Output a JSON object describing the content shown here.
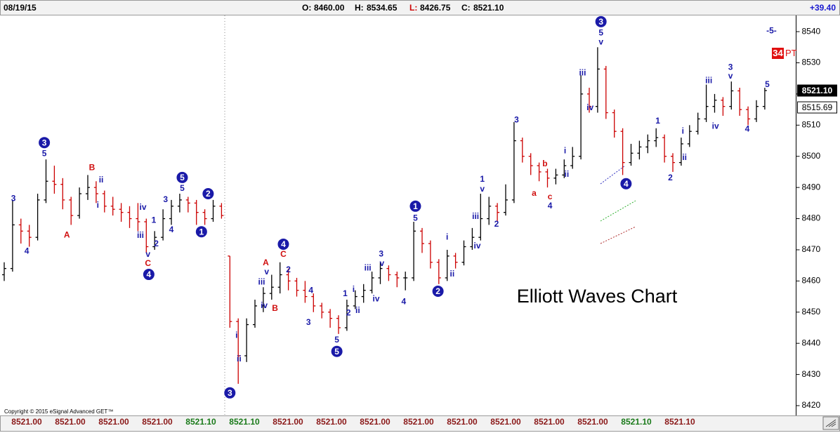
{
  "header": {
    "date": "08/19/15",
    "ohlc": [
      {
        "key": "O:",
        "text": "8460.00"
      },
      {
        "key": "H:",
        "text": "8534.65"
      },
      {
        "key": "L:",
        "text": "8426.75"
      },
      {
        "key": "C:",
        "text": "8521.10"
      }
    ],
    "change": "+39.40"
  },
  "chart_data": {
    "type": "ohlc",
    "title": "Elliott Waves Chart",
    "up_color": "#000000",
    "down_color": "#cc0000",
    "ylim": [
      8417.3,
      8545.2
    ],
    "yticks": [
      8420,
      8430,
      8440,
      8450,
      8460,
      8470,
      8480,
      8490,
      8500,
      8510,
      8520,
      8530,
      8540
    ],
    "ohlc": [
      [
        8462,
        8466,
        8460,
        8464
      ],
      [
        8464,
        8486,
        8463,
        8478
      ],
      [
        8478,
        8480,
        8472,
        8476
      ],
      [
        8476,
        8478,
        8471,
        8474
      ],
      [
        8474,
        8488,
        8473,
        8486
      ],
      [
        8486,
        8499,
        8485,
        8492
      ],
      [
        8492,
        8497,
        8488,
        8491
      ],
      [
        8491,
        8493,
        8483,
        8486
      ],
      [
        8486,
        8487,
        8478,
        8481
      ],
      [
        8481,
        8490,
        8480,
        8488
      ],
      [
        8488,
        8494,
        8486,
        8490
      ],
      [
        8490,
        8492,
        8485,
        8488
      ],
      [
        8488,
        8489,
        8482,
        8484
      ],
      [
        8484,
        8487,
        8481,
        8483
      ],
      [
        8483,
        8485,
        8479,
        8482
      ],
      [
        8482,
        8484,
        8477,
        8480
      ],
      [
        8480,
        8485,
        8476,
        8479
      ],
      [
        8479,
        8480,
        8469,
        8471
      ],
      [
        8471,
        8476,
        8470,
        8474
      ],
      [
        8474,
        8483,
        8473,
        8480
      ],
      [
        8480,
        8486,
        8478,
        8484
      ],
      [
        8484,
        8488,
        8482,
        8486
      ],
      [
        8486,
        8487,
        8482,
        8485
      ],
      [
        8485,
        8486,
        8478,
        8482
      ],
      [
        8482,
        8483,
        8478,
        8480
      ],
      [
        8480,
        8486,
        8479,
        8484
      ],
      [
        8484,
        8485,
        8480,
        8481
      ],
      [
        8468,
        8468,
        8445,
        8447
      ],
      [
        8447,
        8448,
        8427,
        8436
      ],
      [
        8436,
        8448,
        8434,
        8446
      ],
      [
        8446,
        8454,
        8445,
        8452
      ],
      [
        8452,
        8458,
        8450,
        8456
      ],
      [
        8456,
        8462,
        8454,
        8458
      ],
      [
        8458,
        8466,
        8456,
        8462
      ],
      [
        8462,
        8464,
        8457,
        8460
      ],
      [
        8460,
        8461,
        8455,
        8457
      ],
      [
        8457,
        8460,
        8453,
        8455
      ],
      [
        8455,
        8456,
        8450,
        8452
      ],
      [
        8452,
        8453,
        8448,
        8450
      ],
      [
        8450,
        8451,
        8445,
        8448
      ],
      [
        8448,
        8449,
        8443,
        8445
      ],
      [
        8445,
        8454,
        8444,
        8452
      ],
      [
        8452,
        8457,
        8451,
        8455
      ],
      [
        8455,
        8459,
        8453,
        8457
      ],
      [
        8457,
        8463,
        8456,
        8461
      ],
      [
        8461,
        8466,
        8459,
        8464
      ],
      [
        8464,
        8465,
        8460,
        8462
      ],
      [
        8462,
        8463,
        8458,
        8461
      ],
      [
        8461,
        8463,
        8457,
        8461
      ],
      [
        8461,
        8479,
        8460,
        8476
      ],
      [
        8476,
        8477,
        8469,
        8472
      ],
      [
        8472,
        8473,
        8464,
        8466
      ],
      [
        8466,
        8467,
        8459,
        8461
      ],
      [
        8461,
        8470,
        8460,
        8468
      ],
      [
        8468,
        8469,
        8464,
        8466
      ],
      [
        8466,
        8473,
        8465,
        8471
      ],
      [
        8471,
        8477,
        8470,
        8474
      ],
      [
        8474,
        8488,
        8473,
        8480
      ],
      [
        8480,
        8487,
        8478,
        8484
      ],
      [
        8484,
        8485,
        8479,
        8482
      ],
      [
        8482,
        8491,
        8481,
        8486
      ],
      [
        8486,
        8511,
        8485,
        8505
      ],
      [
        8505,
        8506,
        8498,
        8500
      ],
      [
        8500,
        8501,
        8494,
        8497
      ],
      [
        8497,
        8498,
        8492,
        8495
      ],
      [
        8495,
        8496,
        8490,
        8493
      ],
      [
        8493,
        8496,
        8491,
        8494
      ],
      [
        8494,
        8499,
        8493,
        8497
      ],
      [
        8497,
        8503,
        8496,
        8500
      ],
      [
        8500,
        8526,
        8499,
        8520
      ],
      [
        8520,
        8522,
        8514,
        8516
      ],
      [
        8516,
        8535,
        8514,
        8528
      ],
      [
        8528,
        8529,
        8512,
        8514
      ],
      [
        8514,
        8515,
        8506,
        8508
      ],
      [
        8508,
        8509,
        8494,
        8498
      ],
      [
        8498,
        8504,
        8497,
        8501
      ],
      [
        8501,
        8505,
        8499,
        8503
      ],
      [
        8503,
        8507,
        8501,
        8505
      ],
      [
        8505,
        8509,
        8503,
        8506
      ],
      [
        8506,
        8507,
        8498,
        8500
      ],
      [
        8500,
        8501,
        8495,
        8498
      ],
      [
        8498,
        8506,
        8497,
        8504
      ],
      [
        8504,
        8510,
        8503,
        8508
      ],
      [
        8508,
        8514,
        8507,
        8512
      ],
      [
        8512,
        8523,
        8511,
        8516
      ],
      [
        8516,
        8520,
        8514,
        8518
      ],
      [
        8518,
        8519,
        8513,
        8516
      ],
      [
        8516,
        8524,
        8515,
        8521
      ],
      [
        8521,
        8522,
        8513,
        8515
      ],
      [
        8515,
        8516,
        8510,
        8512
      ],
      [
        8512,
        8518,
        8511,
        8516
      ],
      [
        8516,
        8522,
        8515,
        8521.1
      ]
    ],
    "price_tags": [
      {
        "value": 8521.1,
        "label": "8521.10",
        "style": "dark"
      },
      {
        "value": 8515.69,
        "label": "8515.69",
        "style": "light"
      }
    ],
    "annotations": [
      {
        "text": "3",
        "bar": 1.1,
        "price": 8486.4,
        "color": "blue"
      },
      {
        "text": "4",
        "bar": 2.7,
        "price": 8469.5,
        "color": "blue"
      },
      {
        "text": "3",
        "bar": 4.8,
        "price": 8504.4,
        "color": "blue",
        "circled": true
      },
      {
        "text": "5",
        "bar": 4.8,
        "price": 8500.8,
        "color": "blue"
      },
      {
        "text": "A",
        "bar": 7.5,
        "price": 8474.7,
        "color": "red"
      },
      {
        "text": "B",
        "bar": 10.5,
        "price": 8496.3,
        "color": "red"
      },
      {
        "text": "ii",
        "bar": 11.6,
        "price": 8492.3,
        "color": "blue"
      },
      {
        "text": "i",
        "bar": 11.2,
        "price": 8484.2,
        "color": "blue"
      },
      {
        "text": "iii",
        "bar": 16.3,
        "price": 8474.5,
        "color": "blue"
      },
      {
        "text": "iv",
        "bar": 16.6,
        "price": 8483.5,
        "color": "blue"
      },
      {
        "text": "1",
        "bar": 17.9,
        "price": 8479.4,
        "color": "blue"
      },
      {
        "text": "2",
        "bar": 18.2,
        "price": 8471.8,
        "color": "blue"
      },
      {
        "text": "v",
        "bar": 17.2,
        "price": 8468.4,
        "color": "blue"
      },
      {
        "text": "C",
        "bar": 17.2,
        "price": 8465.5,
        "color": "red"
      },
      {
        "text": "4",
        "bar": 17.3,
        "price": 8462.1,
        "color": "blue",
        "circled": true
      },
      {
        "text": "3",
        "bar": 19.3,
        "price": 8486.0,
        "color": "blue"
      },
      {
        "text": "4",
        "bar": 20.0,
        "price": 8476.3,
        "color": "blue"
      },
      {
        "text": "5",
        "bar": 21.3,
        "price": 8493.2,
        "color": "blue",
        "circled": true
      },
      {
        "text": "5",
        "bar": 21.3,
        "price": 8489.6,
        "color": "blue"
      },
      {
        "text": "2",
        "bar": 24.4,
        "price": 8488.0,
        "color": "blue",
        "circled": true
      },
      {
        "text": "1",
        "bar": 23.6,
        "price": 8475.8,
        "color": "blue",
        "circled": true
      },
      {
        "text": "3",
        "bar": 27.0,
        "price": 8424.1,
        "color": "blue",
        "circled": true
      },
      {
        "text": "i",
        "bar": 27.8,
        "price": 8442.5,
        "color": "blue"
      },
      {
        "text": "ii",
        "bar": 28.1,
        "price": 8434.9,
        "color": "blue"
      },
      {
        "text": "iii",
        "bar": 30.8,
        "price": 8459.6,
        "color": "blue"
      },
      {
        "text": "iv",
        "bar": 31.1,
        "price": 8452.0,
        "color": "blue"
      },
      {
        "text": "A",
        "bar": 31.3,
        "price": 8465.7,
        "color": "red"
      },
      {
        "text": "v",
        "bar": 31.4,
        "price": 8462.8,
        "color": "blue"
      },
      {
        "text": "B",
        "bar": 32.4,
        "price": 8451.1,
        "color": "red"
      },
      {
        "text": "4",
        "bar": 33.4,
        "price": 8471.8,
        "color": "blue",
        "circled": true
      },
      {
        "text": "C",
        "bar": 33.4,
        "price": 8468.4,
        "color": "red"
      },
      {
        "text": "2",
        "bar": 34.0,
        "price": 8463.5,
        "color": "blue"
      },
      {
        "text": "4",
        "bar": 36.7,
        "price": 8456.9,
        "color": "blue"
      },
      {
        "text": "3",
        "bar": 36.4,
        "price": 8446.6,
        "color": "blue"
      },
      {
        "text": "1",
        "bar": 40.8,
        "price": 8455.8,
        "color": "blue"
      },
      {
        "text": "i",
        "bar": 41.8,
        "price": 8457.2,
        "color": "blue"
      },
      {
        "text": "2",
        "bar": 41.2,
        "price": 8449.7,
        "color": "blue"
      },
      {
        "text": "ii",
        "bar": 42.3,
        "price": 8450.4,
        "color": "blue"
      },
      {
        "text": "iii",
        "bar": 43.5,
        "price": 8464.1,
        "color": "blue"
      },
      {
        "text": "3",
        "bar": 45.1,
        "price": 8468.6,
        "color": "blue"
      },
      {
        "text": "v",
        "bar": 45.2,
        "price": 8465.5,
        "color": "blue"
      },
      {
        "text": "iv",
        "bar": 44.5,
        "price": 8454.2,
        "color": "blue"
      },
      {
        "text": "5",
        "bar": 39.8,
        "price": 8441.0,
        "color": "blue"
      },
      {
        "text": "5",
        "bar": 39.8,
        "price": 8437.4,
        "color": "blue",
        "circled": true
      },
      {
        "text": "4",
        "bar": 47.8,
        "price": 8453.3,
        "color": "blue"
      },
      {
        "text": "1",
        "bar": 49.2,
        "price": 8484.0,
        "color": "blue",
        "circled": true
      },
      {
        "text": "5",
        "bar": 49.2,
        "price": 8480.1,
        "color": "blue"
      },
      {
        "text": "2",
        "bar": 51.9,
        "price": 8456.7,
        "color": "blue",
        "circled": true
      },
      {
        "text": "i",
        "bar": 53.0,
        "price": 8474.0,
        "color": "blue"
      },
      {
        "text": "ii",
        "bar": 53.6,
        "price": 8462.1,
        "color": "blue"
      },
      {
        "text": "iii",
        "bar": 56.4,
        "price": 8480.6,
        "color": "blue"
      },
      {
        "text": "iv",
        "bar": 56.6,
        "price": 8471.1,
        "color": "blue"
      },
      {
        "text": "1",
        "bar": 57.2,
        "price": 8492.5,
        "color": "blue"
      },
      {
        "text": "v",
        "bar": 57.2,
        "price": 8489.4,
        "color": "blue"
      },
      {
        "text": "2",
        "bar": 58.9,
        "price": 8478.1,
        "color": "blue"
      },
      {
        "text": "3",
        "bar": 61.3,
        "price": 8511.6,
        "color": "blue"
      },
      {
        "text": "b",
        "bar": 64.7,
        "price": 8497.5,
        "color": "red"
      },
      {
        "text": "a",
        "bar": 63.4,
        "price": 8488.0,
        "color": "red"
      },
      {
        "text": "c",
        "bar": 65.3,
        "price": 8486.9,
        "color": "red"
      },
      {
        "text": "4",
        "bar": 65.3,
        "price": 8484.0,
        "color": "blue"
      },
      {
        "text": "i",
        "bar": 67.1,
        "price": 8501.7,
        "color": "blue"
      },
      {
        "text": "ii",
        "bar": 67.3,
        "price": 8494.1,
        "color": "blue"
      },
      {
        "text": "iii",
        "bar": 69.2,
        "price": 8526.7,
        "color": "blue"
      },
      {
        "text": "iv",
        "bar": 70.1,
        "price": 8515.5,
        "color": "blue"
      },
      {
        "text": "3",
        "bar": 71.4,
        "price": 8543.2,
        "color": "blue",
        "circled": true
      },
      {
        "text": "5",
        "bar": 71.4,
        "price": 8539.5,
        "color": "blue"
      },
      {
        "text": "v",
        "bar": 71.4,
        "price": 8536.6,
        "color": "blue"
      },
      {
        "text": "4",
        "bar": 74.4,
        "price": 8491.2,
        "color": "blue",
        "circled": true
      },
      {
        "text": "1",
        "bar": 78.2,
        "price": 8511.2,
        "color": "blue"
      },
      {
        "text": "2",
        "bar": 79.7,
        "price": 8493.0,
        "color": "blue"
      },
      {
        "text": "i",
        "bar": 81.2,
        "price": 8508.0,
        "color": "blue"
      },
      {
        "text": "ii",
        "bar": 81.4,
        "price": 8499.5,
        "color": "blue"
      },
      {
        "text": "iii",
        "bar": 84.3,
        "price": 8524.2,
        "color": "blue"
      },
      {
        "text": "iv",
        "bar": 85.1,
        "price": 8509.6,
        "color": "blue"
      },
      {
        "text": "3",
        "bar": 86.9,
        "price": 8528.5,
        "color": "blue"
      },
      {
        "text": "v",
        "bar": 86.9,
        "price": 8525.6,
        "color": "blue"
      },
      {
        "text": "4",
        "bar": 88.9,
        "price": 8508.7,
        "color": "blue"
      },
      {
        "text": "5",
        "bar": 91.3,
        "price": 8522.9,
        "color": "blue"
      },
      {
        "text": "-5-",
        "bar": 91.8,
        "price": 8540.2,
        "color": "blue"
      }
    ],
    "pt_box": {
      "count": "34",
      "unit": "PT"
    },
    "footer_values": [
      {
        "label": "8521.00",
        "color": "#8b1a1a"
      },
      {
        "label": "8521.00",
        "color": "#8b1a1a"
      },
      {
        "label": "8521.00",
        "color": "#8b1a1a"
      },
      {
        "label": "8521.00",
        "color": "#8b1a1a"
      },
      {
        "label": "8521.10",
        "color": "#1a7a1a"
      },
      {
        "label": "8521.10",
        "color": "#1a7a1a"
      },
      {
        "label": "8521.00",
        "color": "#8b1a1a"
      },
      {
        "label": "8521.00",
        "color": "#8b1a1a"
      },
      {
        "label": "8521.00",
        "color": "#8b1a1a"
      },
      {
        "label": "8521.00",
        "color": "#8b1a1a"
      },
      {
        "label": "8521.00",
        "color": "#8b1a1a"
      },
      {
        "label": "8521.00",
        "color": "#8b1a1a"
      },
      {
        "label": "8521.00",
        "color": "#8b1a1a"
      },
      {
        "label": "8521.00",
        "color": "#8b1a1a"
      },
      {
        "label": "8521.10",
        "color": "#1a7a1a"
      },
      {
        "label": "8521.10",
        "color": "#8b1a1a"
      }
    ],
    "copyright": "Copyright © 2015 eSignal Advanced GET™"
  }
}
